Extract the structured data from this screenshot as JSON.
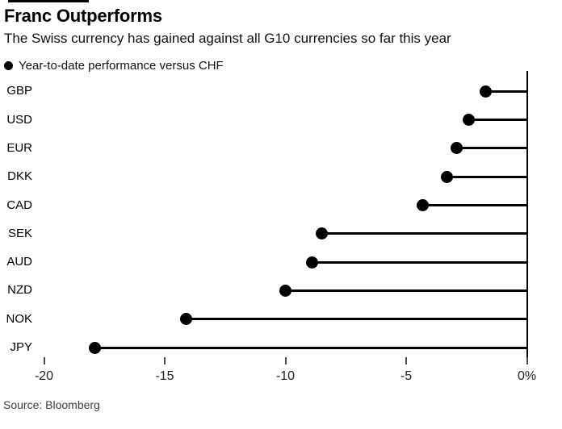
{
  "header": {
    "title": "Franc Outperforms",
    "subtitle": "The Swiss currency has gained against all G10 currencies so far this year"
  },
  "legend": {
    "marker": "circle-filled",
    "label": "Year-to-date performance versus CHF"
  },
  "source": "Source: Bloomberg",
  "colors": {
    "series": "#000000",
    "text": "#000000",
    "tick": "#4a4a4a",
    "source_text": "#3d3d3d",
    "background": "#ffffff"
  },
  "chart_data": {
    "type": "bar",
    "style": "horizontal-lollipop",
    "title": "Franc Outperforms",
    "subtitle": "The Swiss currency has gained against all G10 currencies so far this year",
    "series_name": "Year-to-date performance versus CHF",
    "categories": [
      "GBP",
      "USD",
      "EUR",
      "DKK",
      "CAD",
      "SEK",
      "AUD",
      "NZD",
      "NOK",
      "JPY"
    ],
    "values": [
      -1.7,
      -2.4,
      -2.9,
      -3.3,
      -4.3,
      -8.5,
      -8.9,
      -10.0,
      -14.1,
      -17.9
    ],
    "unit": "%",
    "xlabel": "",
    "ylabel": "",
    "xlim": [
      -20,
      0
    ],
    "xticks": [
      -20,
      -15,
      -10,
      -5,
      0
    ],
    "xtick_labels": [
      "-20",
      "-15",
      "-10",
      "-5",
      "0%"
    ],
    "baseline": 0,
    "grid": false,
    "legend_position": "top-left"
  }
}
